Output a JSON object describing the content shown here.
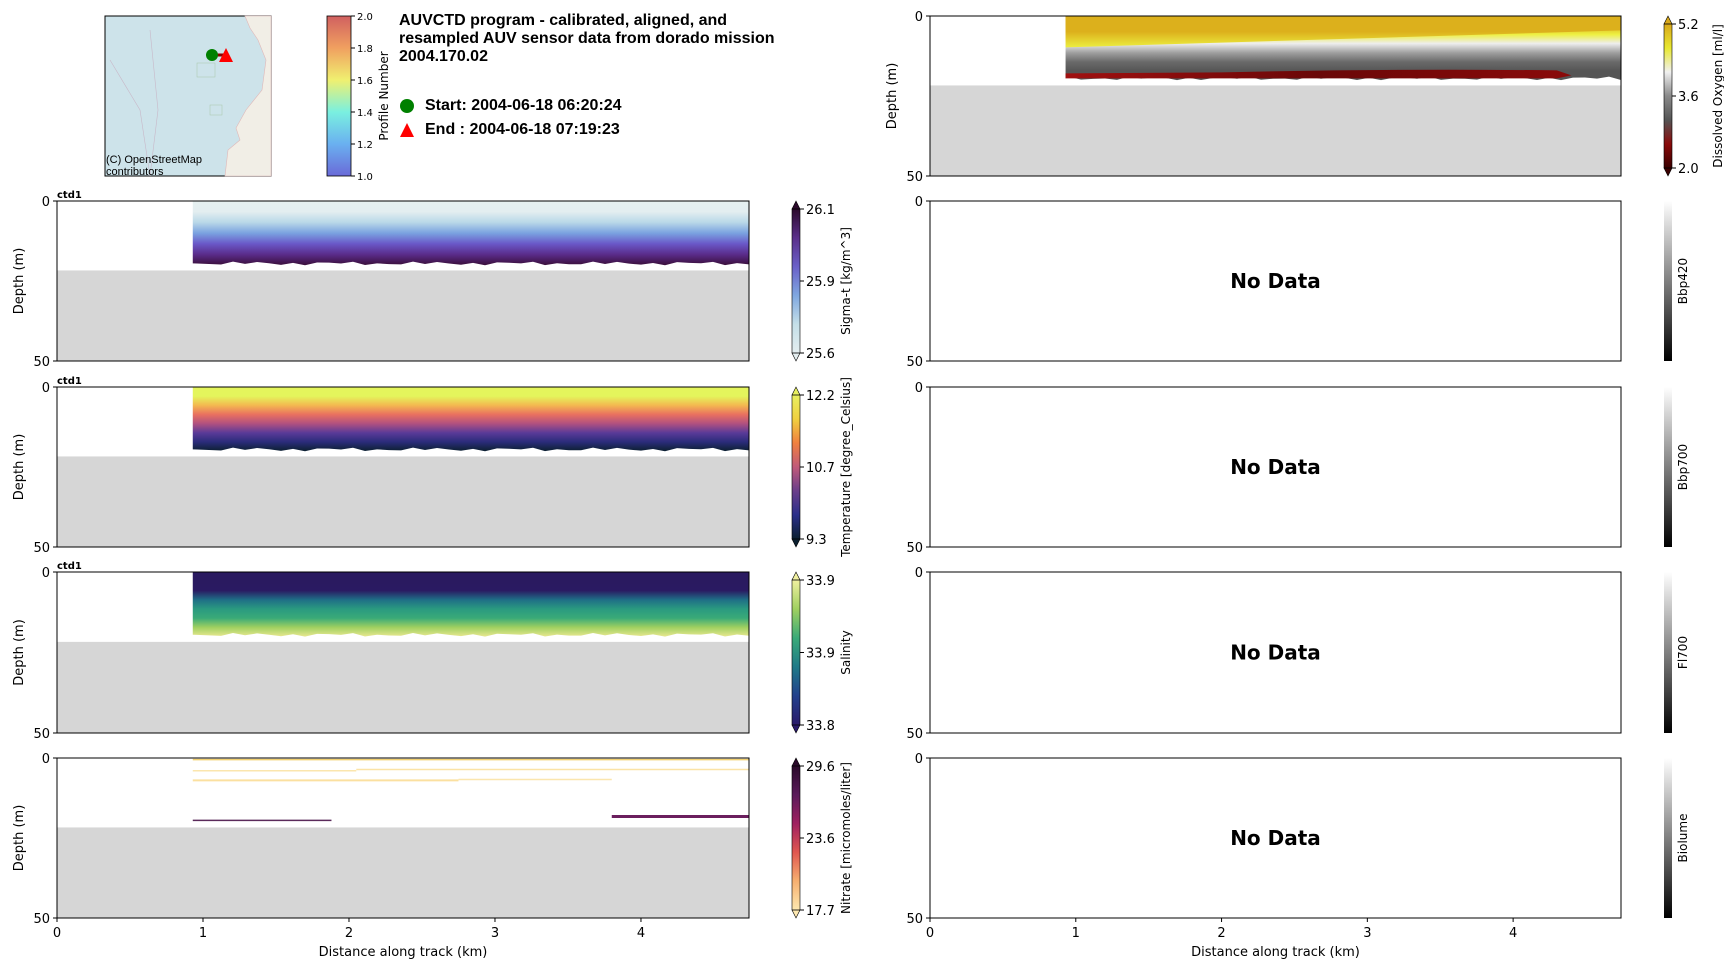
{
  "header": {
    "title": "AUVCTD program - calibrated, aligned, and resampled AUV sensor data from dorado mission 2004.170.02",
    "start_label": "Start: 2004-06-18 06:20:24",
    "end_label": "End  : 2004-06-18 07:19:23",
    "start_color": "#008000",
    "end_color": "#ff0000"
  },
  "map": {
    "attribution": "(C) OpenStreetMap contributors",
    "colorbar": {
      "label": "Profile Number",
      "ticks": [
        "1.0",
        "1.2",
        "1.4",
        "1.6",
        "1.8",
        "2.0"
      ],
      "range": [
        1.0,
        2.0
      ]
    }
  },
  "chart_data": [
    {
      "type": "heatmap",
      "id": "sigmat",
      "panel_tag": "ctd1",
      "ylabel": "Depth (m)",
      "xlabel": "",
      "ylim": [
        50,
        0
      ],
      "xlim": [
        0,
        4.74
      ],
      "yticks": [
        "0",
        "50"
      ],
      "xticks": [],
      "data_start_km": 0.93,
      "data_max_depth_m": 19.5,
      "bottom_depth_m": 21.7,
      "colorbar": {
        "label": "Sigma-t [kg/m^3]",
        "ticks": [
          "25.6",
          "25.9",
          "26.1"
        ],
        "colors": [
          "#e4eef0",
          "#c4dfe8",
          "#7fa7e0",
          "#6a60c8",
          "#5a2f8a",
          "#2c0a2c"
        ]
      },
      "profile_colors": [
        "#e6f0f0",
        "#e3eef0",
        "#b9d8e8",
        "#7aa2e0",
        "#6a58c8",
        "#5a2c8a",
        "#3a0e3a"
      ]
    },
    {
      "type": "heatmap",
      "id": "temperature",
      "panel_tag": "ctd1",
      "ylabel": "Depth (m)",
      "xlabel": "",
      "ylim": [
        50,
        0
      ],
      "xlim": [
        0,
        4.74
      ],
      "yticks": [
        "0",
        "50"
      ],
      "xticks": [],
      "data_start_km": 0.93,
      "data_max_depth_m": 19.5,
      "bottom_depth_m": 21.7,
      "colorbar": {
        "label": "Temperature [degree_Celsius]",
        "ticks": [
          "9.3",
          "10.7",
          "12.2"
        ],
        "colors": [
          "#0b2030",
          "#2a2f8a",
          "#6a3e8a",
          "#c05a7a",
          "#f08040",
          "#f0d040",
          "#e8f060"
        ]
      },
      "profile_colors": [
        "#e4f55c",
        "#e4f55c",
        "#f3b850",
        "#e97060",
        "#b05080",
        "#5a3a98",
        "#2a2c7a",
        "#0c2030"
      ]
    },
    {
      "type": "heatmap",
      "id": "salinity",
      "panel_tag": "ctd1",
      "ylabel": "Depth (m)",
      "xlabel": "",
      "ylim": [
        50,
        0
      ],
      "xlim": [
        0,
        4.74
      ],
      "yticks": [
        "0",
        "50"
      ],
      "xticks": [],
      "data_start_km": 0.93,
      "data_max_depth_m": 19.5,
      "bottom_depth_m": 21.7,
      "colorbar": {
        "label": "Salinity",
        "ticks": [
          "33.8",
          "33.9",
          "33.9"
        ],
        "colors": [
          "#2a1a6a",
          "#23408c",
          "#1f7a88",
          "#3aaa78",
          "#a0d060",
          "#f0f0a0"
        ]
      },
      "profile_colors": [
        "#2a1a60",
        "#2a1a60",
        "#2a1a62",
        "#1f6e86",
        "#2a9a80",
        "#3aaa78",
        "#a0d060",
        "#e8e890"
      ]
    },
    {
      "type": "heatmap",
      "id": "nitrate",
      "panel_tag": "",
      "ylabel": "Depth (m)",
      "xlabel": "Distance along track (km)",
      "ylim": [
        50,
        0
      ],
      "xlim": [
        0,
        4.74
      ],
      "yticks": [
        "0",
        "50"
      ],
      "xticks": [
        "0",
        "1",
        "2",
        "3",
        "4"
      ],
      "bottom_depth_m": 21.7,
      "colorbar": {
        "label": "Nitrate [micromoles/liter]",
        "ticks": [
          "17.7",
          "23.6",
          "29.6"
        ],
        "colors": [
          "#fde8b0",
          "#f6b070",
          "#e05850",
          "#a02060",
          "#5a1a5a",
          "#2a0a2a"
        ]
      },
      "segments": [
        {
          "x0": 0.93,
          "x1": 4.74,
          "depth": 0.5,
          "color": "#f2d070",
          "w": 1.5
        },
        {
          "x0": 0.93,
          "x1": 2.05,
          "depth": 4,
          "color": "#fbe6ae",
          "w": 1.5
        },
        {
          "x0": 2.05,
          "x1": 4.74,
          "depth": 3.6,
          "color": "#fbe3a6",
          "w": 1.5
        },
        {
          "x0": 0.93,
          "x1": 2.75,
          "depth": 7,
          "color": "#fbe0a0",
          "w": 2
        },
        {
          "x0": 2.75,
          "x1": 3.8,
          "depth": 6.7,
          "color": "#fbe6ae",
          "w": 1.5
        },
        {
          "x0": 0.93,
          "x1": 1.88,
          "depth": 19.5,
          "color": "#5a2a5a",
          "w": 1.5
        },
        {
          "x0": 3.8,
          "x1": 4.74,
          "depth": 18.3,
          "color": "#6b1f5e",
          "w": 3
        }
      ]
    },
    {
      "type": "heatmap",
      "id": "oxygen",
      "panel_tag": "",
      "ylabel": "Depth (m)",
      "xlabel": "",
      "ylim": [
        50,
        0
      ],
      "xlim": [
        0,
        4.74
      ],
      "yticks": [
        "0",
        "50"
      ],
      "xticks": [],
      "data_start_km": 0.93,
      "data_max_depth_m": 19.5,
      "bottom_depth_m": 21.7,
      "colorbar": {
        "label": "Dissolved Oxygen [ml/l]",
        "ticks": [
          "2.0",
          "3.6",
          "5.2"
        ],
        "colors": [
          "#3a0000",
          "#8a0a0a",
          "#555555",
          "#8a8a8a",
          "#f0f0f0",
          "#e8e830",
          "#d9a81a"
        ]
      },
      "profile_colors": [
        "#dcb01c",
        "#dcb01c",
        "#eef040",
        "#eeeeee",
        "#a0a0a0",
        "#6a6a6a",
        "#555555",
        "#555555"
      ]
    },
    {
      "type": "heatmap",
      "id": "bbp420",
      "ylabel": "",
      "xlabel": "",
      "ylim": [
        50,
        0
      ],
      "yticks": [
        "0",
        "50"
      ],
      "xticks": [],
      "no_data": "No Data",
      "colorbar": {
        "label": "Bbp420",
        "ticks": [],
        "colors": [
          "#000000",
          "#ffffff"
        ]
      }
    },
    {
      "type": "heatmap",
      "id": "bbp700",
      "ylabel": "",
      "xlabel": "",
      "ylim": [
        50,
        0
      ],
      "yticks": [
        "0",
        "50"
      ],
      "xticks": [],
      "no_data": "No Data",
      "colorbar": {
        "label": "Bbp700",
        "ticks": [],
        "colors": [
          "#000000",
          "#ffffff"
        ]
      }
    },
    {
      "type": "heatmap",
      "id": "fl700",
      "ylabel": "",
      "xlabel": "",
      "ylim": [
        50,
        0
      ],
      "yticks": [
        "0",
        "50"
      ],
      "xticks": [],
      "no_data": "No Data",
      "colorbar": {
        "label": "Fl700",
        "ticks": [],
        "colors": [
          "#000000",
          "#ffffff"
        ]
      }
    },
    {
      "type": "heatmap",
      "id": "biolume",
      "ylabel": "",
      "xlabel": "Distance along track (km)",
      "ylim": [
        50,
        0
      ],
      "xlim": [
        0,
        4.74
      ],
      "yticks": [
        "0",
        "50"
      ],
      "xticks": [
        "0",
        "1",
        "2",
        "3",
        "4"
      ],
      "no_data": "No Data",
      "colorbar": {
        "label": "Biolume",
        "ticks": [],
        "colors": [
          "#000000",
          "#ffffff"
        ]
      }
    }
  ]
}
